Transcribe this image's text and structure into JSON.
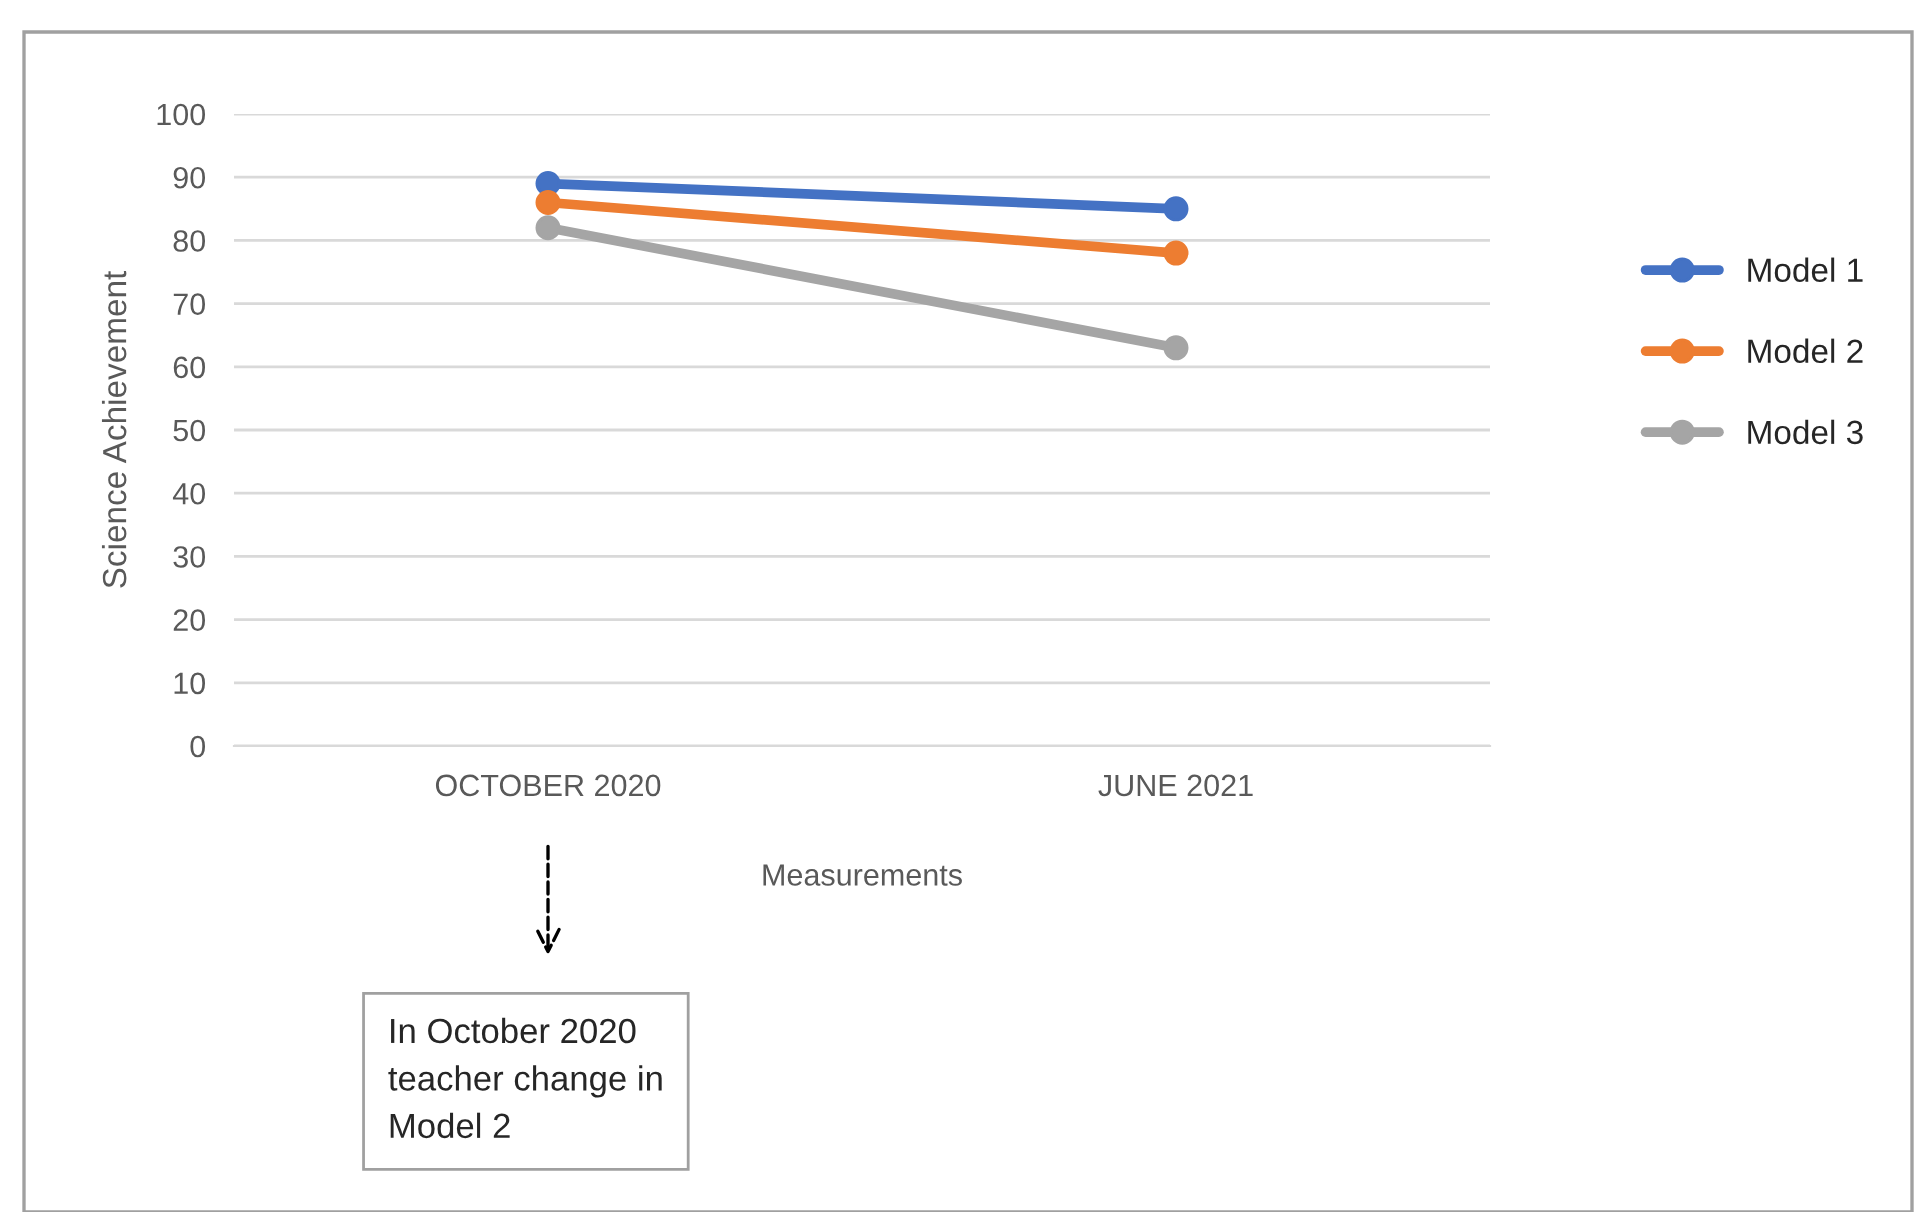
{
  "chart_data": {
    "type": "line",
    "xlabel": "Measurements",
    "ylabel": "Science Achievement",
    "categories": [
      "OCTOBER 2020",
      "JUNE 2021"
    ],
    "series": [
      {
        "name": "Model 1",
        "color": "#4472c4",
        "values": [
          89,
          85
        ]
      },
      {
        "name": "Model 2",
        "color": "#ed7d31",
        "values": [
          86,
          78
        ]
      },
      {
        "name": "Model 3",
        "color": "#a5a5a5",
        "values": [
          82,
          63
        ]
      }
    ],
    "ylim": [
      0,
      100
    ],
    "yticks": [
      0,
      10,
      20,
      30,
      40,
      50,
      60,
      70,
      80,
      90,
      100
    ],
    "grid": "y",
    "legend": "right",
    "marker": "circle",
    "line_style": "solid",
    "annotations": [
      "In October 2020\nteacher change in\nModel 2"
    ]
  }
}
